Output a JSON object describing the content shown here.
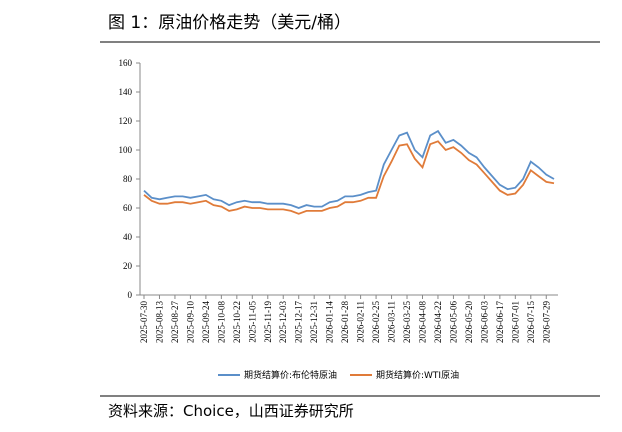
{
  "chart_data": {
    "type": "line",
    "title": "图 1：原油价格走势（美元/桶）",
    "source": "资料来源：Choice，山西证券研究所",
    "categories": [
      "2025-07-30",
      null,
      "2025-08-13",
      null,
      "2025-08-27",
      null,
      "2025-09-10",
      null,
      "2025-09-24",
      null,
      "2025-10-08",
      null,
      "2025-10-22",
      null,
      "2025-11-05",
      null,
      "2025-11-19",
      null,
      "2025-12-03",
      null,
      "2025-12-17",
      null,
      "2025-12-31",
      null,
      "2026-01-14",
      null,
      "2026-01-28",
      null,
      "2026-02-11",
      null,
      "2026-02-25",
      null,
      "2026-03-11",
      null,
      "2026-03-25",
      null,
      "2026-04-08",
      null,
      "2026-04-22",
      null,
      "2026-05-06",
      null,
      "2026-05-20",
      null,
      "2026-06-03",
      null,
      "2026-06-17",
      null,
      "2026-07-01",
      null,
      "2026-07-15",
      null,
      "2026-07-29",
      null
    ],
    "series": [
      {
        "name": "期货结算价:布伦特原油",
        "color": "#5b8fc9",
        "values": [
          72,
          67,
          66,
          67,
          68,
          68,
          67,
          68,
          69,
          66,
          65,
          62,
          64,
          65,
          64,
          64,
          63,
          63,
          63,
          62,
          60,
          62,
          61,
          61,
          64,
          65,
          68,
          68,
          69,
          71,
          72,
          90,
          100,
          110,
          112,
          100,
          95,
          110,
          113,
          105,
          107,
          103,
          98,
          95,
          88,
          82,
          76,
          73,
          74,
          80,
          92,
          88,
          83,
          80
        ]
      },
      {
        "name": "期货结算价:WTI原油",
        "color": "#e07b39",
        "values": [
          69,
          65,
          63,
          63,
          64,
          64,
          63,
          64,
          65,
          62,
          61,
          58,
          59,
          61,
          60,
          60,
          59,
          59,
          59,
          58,
          56,
          58,
          58,
          58,
          60,
          61,
          64,
          64,
          65,
          67,
          67,
          82,
          92,
          103,
          104,
          94,
          88,
          104,
          106,
          100,
          102,
          98,
          93,
          90,
          84,
          78,
          72,
          69,
          70,
          76,
          86,
          82,
          78,
          77
        ]
      }
    ],
    "ylim": [
      0,
      160
    ],
    "yticks": [
      0,
      20,
      40,
      60,
      80,
      100,
      120,
      140,
      160
    ]
  }
}
